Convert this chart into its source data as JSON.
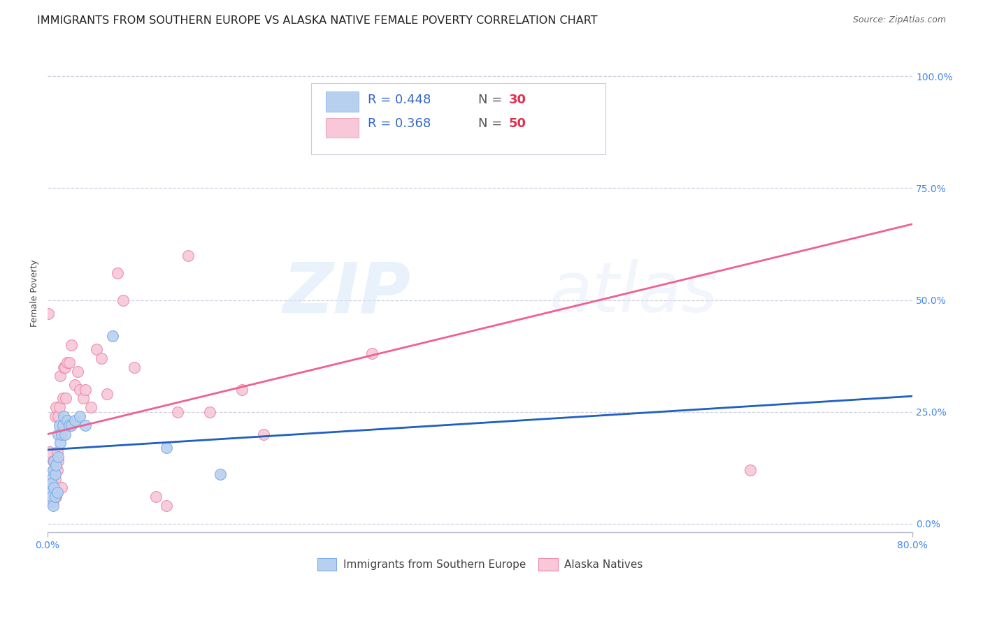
{
  "title": "IMMIGRANTS FROM SOUTHERN EUROPE VS ALASKA NATIVE FEMALE POVERTY CORRELATION CHART",
  "source": "Source: ZipAtlas.com",
  "ylabel": "Female Poverty",
  "ytick_labels": [
    "0.0%",
    "25.0%",
    "50.0%",
    "75.0%",
    "100.0%"
  ],
  "ytick_values": [
    0.0,
    0.25,
    0.5,
    0.75,
    1.0
  ],
  "xlim": [
    0.0,
    0.8
  ],
  "ylim": [
    -0.02,
    1.05
  ],
  "watermark_zip": "ZIP",
  "watermark_atlas": "atlas",
  "blue_scatter_x": [
    0.002,
    0.003,
    0.003,
    0.004,
    0.004,
    0.005,
    0.005,
    0.006,
    0.006,
    0.007,
    0.007,
    0.008,
    0.009,
    0.01,
    0.01,
    0.011,
    0.012,
    0.013,
    0.014,
    0.015,
    0.016,
    0.018,
    0.02,
    0.022,
    0.025,
    0.03,
    0.035,
    0.06,
    0.11,
    0.16
  ],
  "blue_scatter_y": [
    0.05,
    0.07,
    0.1,
    0.06,
    0.09,
    0.04,
    0.12,
    0.08,
    0.14,
    0.06,
    0.11,
    0.13,
    0.07,
    0.15,
    0.2,
    0.22,
    0.18,
    0.2,
    0.22,
    0.24,
    0.2,
    0.23,
    0.22,
    0.22,
    0.23,
    0.24,
    0.22,
    0.42,
    0.17,
    0.11
  ],
  "pink_scatter_x": [
    0.001,
    0.002,
    0.002,
    0.003,
    0.003,
    0.004,
    0.004,
    0.005,
    0.005,
    0.006,
    0.006,
    0.007,
    0.007,
    0.008,
    0.008,
    0.009,
    0.009,
    0.01,
    0.01,
    0.011,
    0.012,
    0.013,
    0.014,
    0.015,
    0.016,
    0.017,
    0.018,
    0.02,
    0.022,
    0.025,
    0.028,
    0.03,
    0.033,
    0.035,
    0.04,
    0.045,
    0.05,
    0.055,
    0.065,
    0.07,
    0.08,
    0.1,
    0.11,
    0.12,
    0.13,
    0.15,
    0.18,
    0.2,
    0.3,
    0.65
  ],
  "pink_scatter_y": [
    0.47,
    0.16,
    0.06,
    0.08,
    0.07,
    0.06,
    0.1,
    0.14,
    0.05,
    0.12,
    0.08,
    0.1,
    0.24,
    0.06,
    0.26,
    0.12,
    0.16,
    0.14,
    0.24,
    0.26,
    0.33,
    0.08,
    0.28,
    0.35,
    0.35,
    0.28,
    0.36,
    0.36,
    0.4,
    0.31,
    0.34,
    0.3,
    0.28,
    0.3,
    0.26,
    0.39,
    0.37,
    0.29,
    0.56,
    0.5,
    0.35,
    0.06,
    0.04,
    0.25,
    0.6,
    0.25,
    0.3,
    0.2,
    0.38,
    0.12
  ],
  "blue_line_x": [
    0.0,
    0.8
  ],
  "blue_line_y": [
    0.165,
    0.285
  ],
  "pink_line_x": [
    0.0,
    0.8
  ],
  "pink_line_y": [
    0.2,
    0.67
  ],
  "blue_scatter_color": "#b8d0f0",
  "blue_scatter_edge": "#7aaae8",
  "pink_scatter_color": "#f8c8d8",
  "pink_scatter_edge": "#e888a8",
  "blue_line_color": "#2060c0",
  "pink_line_color": "#f06090",
  "grid_color": "#d0d0e0",
  "bg_color": "#ffffff",
  "title_fontsize": 11.5,
  "axis_label_fontsize": 9,
  "tick_fontsize": 10,
  "right_ytick_color": "#4488ee",
  "legend_text_color": "#3366cc",
  "legend_n_color": "#3388ee",
  "legend_fontsize": 13
}
